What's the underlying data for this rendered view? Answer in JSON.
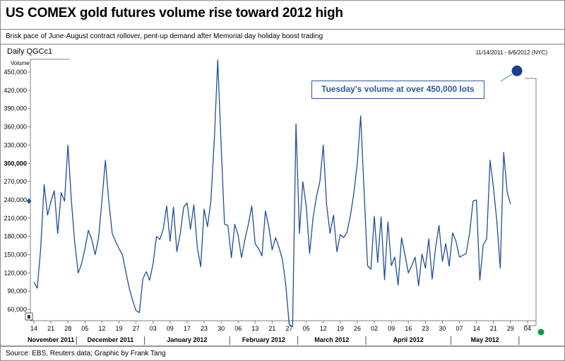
{
  "header": {
    "title": "US COMEX gold futures volume rise toward 2012 high"
  },
  "subtitle": "Brisk pace of June-August contract rollover, pent-up demand after Memorial day holiday boost trading",
  "chart": {
    "instrument_label": "Daily QGCc1",
    "axis_unit_label": "Volume",
    "date_range_label": "11/14/2011 - 6/6/2012 (NYC)",
    "annotation_text": "Tuesday's volume at over 450,000 lots"
  },
  "footer": {
    "source": "Source: EBS, Reuters data; Graphic by Frank Tang"
  },
  "colors": {
    "line": "#1f4e9e",
    "axis": "#808080",
    "annotation_blue": "#2a58a8",
    "highlight_dot": "#15418c",
    "live_dot_green": "#00a03c",
    "label_text": "#000000"
  },
  "chart_data": {
    "type": "line",
    "title": "US COMEX gold futures volume rise toward 2012 high",
    "ylabel": "Volume",
    "xlabel": "",
    "ylim": [
      30000,
      470000
    ],
    "grid": false,
    "legend_position": "none",
    "y_ticks": [
      {
        "label": "450,000",
        "value": 450000,
        "bold": false
      },
      {
        "label": "420,000",
        "value": 420000,
        "bold": false
      },
      {
        "label": "390,000",
        "value": 390000,
        "bold": false
      },
      {
        "label": "360,000",
        "value": 360000,
        "bold": false
      },
      {
        "label": "330,000",
        "value": 330000,
        "bold": false
      },
      {
        "label": "300,000",
        "value": 300000,
        "bold": true
      },
      {
        "label": "270,000",
        "value": 270000,
        "bold": false
      },
      {
        "label": "240,000",
        "value": 240000,
        "bold": false
      },
      {
        "label": "210,000",
        "value": 210000,
        "bold": false
      },
      {
        "label": "180,000",
        "value": 180000,
        "bold": false
      },
      {
        "label": "150,000",
        "value": 150000,
        "bold": false
      },
      {
        "label": "120,000",
        "value": 120000,
        "bold": false
      },
      {
        "label": "90,000",
        "value": 90000,
        "bold": false
      },
      {
        "label": "60,000",
        "value": 60000,
        "bold": false
      }
    ],
    "months": [
      {
        "label": "November 2011",
        "tick_labels": [
          "14",
          "21",
          "28"
        ]
      },
      {
        "label": "December 2011",
        "tick_labels": [
          "05",
          "12",
          "19",
          "27"
        ]
      },
      {
        "label": "January 2012",
        "tick_labels": [
          "03",
          "09",
          "17",
          "23",
          "30"
        ]
      },
      {
        "label": "February 2012",
        "tick_labels": [
          "06",
          "13",
          "21",
          "27"
        ]
      },
      {
        "label": "March 2012",
        "tick_labels": [
          "05",
          "12",
          "19",
          "26"
        ]
      },
      {
        "label": "April 2012",
        "tick_labels": [
          "02",
          "09",
          "16",
          "23",
          "30"
        ]
      },
      {
        "label": "May 2012",
        "tick_labels": [
          "07",
          "14",
          "21",
          "29"
        ]
      },
      {
        "label": "",
        "tick_labels": [
          "04"
        ]
      }
    ],
    "series": [
      {
        "name": "QGCc1 daily volume (lots, estimated from plot)",
        "values": [
          105000,
          95000,
          160000,
          265000,
          215000,
          237000,
          255000,
          185000,
          252000,
          238000,
          330000,
          240000,
          170000,
          120000,
          135000,
          160000,
          190000,
          175000,
          150000,
          178000,
          240000,
          305000,
          238000,
          185000,
          172000,
          160000,
          150000,
          122000,
          95000,
          75000,
          58000,
          55000,
          110000,
          122000,
          108000,
          135000,
          180000,
          175000,
          192000,
          230000,
          172000,
          228000,
          155000,
          185000,
          228000,
          235000,
          192000,
          232000,
          162000,
          130000,
          225000,
          196000,
          238000,
          340000,
          470000,
          330000,
          200000,
          198000,
          145000,
          200000,
          182000,
          145000,
          175000,
          200000,
          230000,
          168000,
          160000,
          148000,
          222000,
          196000,
          158000,
          178000,
          162000,
          142000,
          100000,
          35000,
          32000,
          365000,
          185000,
          270000,
          230000,
          152000,
          210000,
          245000,
          270000,
          330000,
          232000,
          185000,
          215000,
          155000,
          183000,
          178000,
          187000,
          215000,
          252000,
          300000,
          378000,
          255000,
          132000,
          126000,
          213000,
          137000,
          212000,
          109000,
          204000,
          132000,
          146000,
          100000,
          178000,
          150000,
          120000,
          132000,
          146000,
          99000,
          151000,
          128000,
          176000,
          110000,
          162000,
          198000,
          139000,
          168000,
          131000,
          186000,
          172000,
          146000,
          149000,
          152000,
          186000,
          238000,
          240000,
          108000,
          166000,
          176000,
          305000,
          260000,
          205000,
          128000,
          318000,
          254000,
          233000
        ]
      }
    ],
    "highlight_point": {
      "label": "Tuesday's volume at over 450,000 lots",
      "value": 452000
    },
    "last_value_axis_marker": 238000
  }
}
